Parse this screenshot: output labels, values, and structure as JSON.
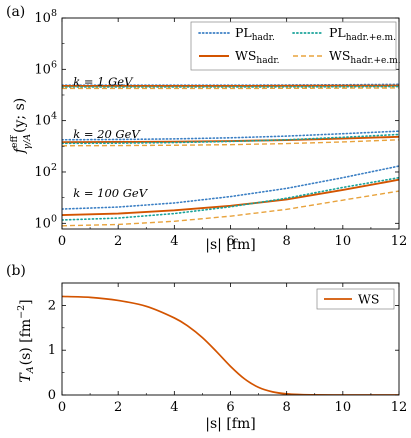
{
  "chart_data": [
    {
      "panel": "(a)",
      "type": "line",
      "xlabel": "|s| [fm]",
      "ylabel": "f eff γ/A (y;s)",
      "ylabel_parts": {
        "base": "f",
        "sup": "eff",
        "sub": "γ/A",
        "arg": "(y; s)"
      },
      "scale_y": "log",
      "xlim": [
        0,
        12
      ],
      "ylim": [
        0.6,
        100000000
      ],
      "xticks": [
        "0",
        "2",
        "4",
        "6",
        "8",
        "10",
        "12"
      ],
      "yticks": [
        {
          "value": 1,
          "base": "10",
          "exp": "0"
        },
        {
          "value": 100,
          "base": "10",
          "exp": "2"
        },
        {
          "value": 10000,
          "base": "10",
          "exp": "4"
        },
        {
          "value": 1000000,
          "base": "10",
          "exp": "6"
        },
        {
          "value": 100000000,
          "base": "10",
          "exp": "8"
        }
      ],
      "grid": false,
      "legend": {
        "placement": "top",
        "entries": [
          {
            "series": "PL hadr.",
            "main": "PL",
            "sub": "hadr."
          },
          {
            "series": "PL hadr.+e.m.",
            "main": "PL",
            "sub": "hadr.+e.m."
          },
          {
            "series": "WS hadr.",
            "main": "WS",
            "sub": "hadr."
          },
          {
            "series": "WS hadr.+e.m.",
            "main": "WS",
            "sub": "hadr.+e.m."
          }
        ]
      },
      "annotations": [
        {
          "text": "k = 1 GeV",
          "x": 0.4,
          "y": 330000
        },
        {
          "text": "k = 20 GeV",
          "x": 0.4,
          "y": 3000
        },
        {
          "text": "k = 100 GeV",
          "x": 0.4,
          "y": 15
        }
      ],
      "colors": {
        "PL": "#3b7fc4",
        "WS": "#d35400",
        "PL_em": "#1aa39a",
        "WS_em": "#e8a33d"
      },
      "x": [
        0,
        2,
        4,
        6,
        8,
        10,
        12
      ],
      "series": [
        {
          "name": "PL hadr.",
          "group": "k = 1 GeV",
          "values": [
            240000,
            240000,
            240000,
            240000,
            245000,
            250000,
            260000
          ]
        },
        {
          "name": "WS hadr.",
          "group": "k = 1 GeV",
          "values": [
            225000,
            225000,
            225000,
            225000,
            227000,
            230000,
            232000
          ]
        },
        {
          "name": "PL hadr.+e.m.",
          "group": "k = 1 GeV",
          "values": [
            205000,
            205000,
            205000,
            205000,
            207000,
            210000,
            214000
          ]
        },
        {
          "name": "WS hadr.+e.m.",
          "group": "k = 1 GeV",
          "values": [
            180000,
            180000,
            180000,
            180000,
            182000,
            185000,
            188000
          ]
        },
        {
          "name": "PL hadr.",
          "group": "k = 20 GeV",
          "values": [
            1800,
            1850,
            1950,
            2150,
            2500,
            3100,
            3900
          ]
        },
        {
          "name": "WS hadr.",
          "group": "k = 20 GeV",
          "values": [
            1450,
            1480,
            1520,
            1600,
            1760,
            2000,
            2350
          ]
        },
        {
          "name": "PL hadr.+e.m.",
          "group": "k = 20 GeV",
          "values": [
            1300,
            1330,
            1400,
            1550,
            1800,
            2250,
            2900
          ]
        },
        {
          "name": "WS hadr.+e.m.",
          "group": "k = 20 GeV",
          "values": [
            1050,
            1070,
            1100,
            1160,
            1280,
            1480,
            1800
          ]
        },
        {
          "name": "PL hadr.",
          "group": "k = 100 GeV",
          "values": [
            3.6,
            4.3,
            6.2,
            11,
            23,
            60,
            170
          ]
        },
        {
          "name": "WS hadr.",
          "group": "k = 100 GeV",
          "values": [
            2.1,
            2.4,
            3.2,
            4.8,
            8.5,
            20,
            50
          ]
        },
        {
          "name": "PL hadr.+e.m.",
          "group": "k = 100 GeV",
          "values": [
            1.35,
            1.6,
            2.4,
            4.4,
            9.5,
            25,
            60
          ]
        },
        {
          "name": "WS hadr.+e.m.",
          "group": "k = 100 GeV",
          "values": [
            0.8,
            0.9,
            1.2,
            1.9,
            3.5,
            8,
            18
          ]
        }
      ]
    },
    {
      "panel": "(b)",
      "type": "line",
      "xlabel": "|s| [fm]",
      "ylabel": "T A (s) [fm −2]",
      "ylabel_parts": {
        "base": "T",
        "sub": "A",
        "arg": "(s) [fm",
        "sup": "−2",
        "close": "]"
      },
      "xlim": [
        0,
        12
      ],
      "ylim": [
        0,
        2.5
      ],
      "xticks": [
        "0",
        "2",
        "4",
        "6",
        "8",
        "10",
        "12"
      ],
      "yticks": [
        "0",
        "1",
        "2"
      ],
      "grid": false,
      "legend": {
        "placement": "top-right",
        "entries": [
          {
            "series": "WS",
            "main": "WS",
            "sub": ""
          }
        ]
      },
      "x": [
        0,
        1,
        2,
        3,
        4,
        4.5,
        5,
        5.5,
        6,
        6.5,
        7,
        7.5,
        8,
        8.5,
        9,
        10,
        11,
        12
      ],
      "series": [
        {
          "name": "WS",
          "values": [
            2.2,
            2.18,
            2.11,
            1.98,
            1.72,
            1.53,
            1.28,
            0.97,
            0.64,
            0.36,
            0.17,
            0.07,
            0.025,
            0.009,
            0.003,
            0.0004,
            0.0,
            0.0
          ]
        }
      ]
    }
  ]
}
